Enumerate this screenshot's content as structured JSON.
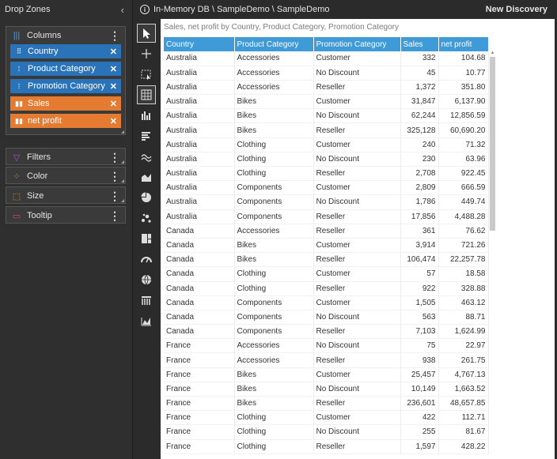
{
  "dropzones": {
    "title": "Drop Zones",
    "collapse_glyph": "‹",
    "columns": {
      "label": "Columns",
      "chips": [
        {
          "label": "Country",
          "kind": "dim"
        },
        {
          "label": "Product Category",
          "kind": "dim"
        },
        {
          "label": "Promotion Category",
          "kind": "dim"
        },
        {
          "label": "Sales",
          "kind": "meas"
        },
        {
          "label": "net profit",
          "kind": "meas"
        }
      ]
    },
    "filters": {
      "label": "Filters"
    },
    "color": {
      "label": "Color"
    },
    "size": {
      "label": "Size"
    },
    "tooltip": {
      "label": "Tooltip"
    },
    "kebab": "⋮",
    "remove": "✕"
  },
  "topbar": {
    "info": "i",
    "path": "In-Memory DB \\ SampleDemo \\ SampleDemo",
    "new_discovery": "New Discovery"
  },
  "visual": {
    "subtitle": "Sales, net profit by Country, Product Category, Promotion Category",
    "headers": [
      "Country",
      "Product Category",
      "Promotion Category",
      "Sales",
      "net profit"
    ],
    "rows": [
      [
        "Australia",
        "Accessories",
        "Customer",
        "332",
        "104.68"
      ],
      [
        "Australia",
        "Accessories",
        "No Discount",
        "45",
        "10.77"
      ],
      [
        "Australia",
        "Accessories",
        "Reseller",
        "1,372",
        "351.80"
      ],
      [
        "Australia",
        "Bikes",
        "Customer",
        "31,847",
        "6,137.90"
      ],
      [
        "Australia",
        "Bikes",
        "No Discount",
        "62,244",
        "12,856.59"
      ],
      [
        "Australia",
        "Bikes",
        "Reseller",
        "325,128",
        "60,690.20"
      ],
      [
        "Australia",
        "Clothing",
        "Customer",
        "240",
        "71.32"
      ],
      [
        "Australia",
        "Clothing",
        "No Discount",
        "230",
        "63.96"
      ],
      [
        "Australia",
        "Clothing",
        "Reseller",
        "2,708",
        "922.45"
      ],
      [
        "Australia",
        "Components",
        "Customer",
        "2,809",
        "666.59"
      ],
      [
        "Australia",
        "Components",
        "No Discount",
        "1,786",
        "449.74"
      ],
      [
        "Australia",
        "Components",
        "Reseller",
        "17,856",
        "4,488.28"
      ],
      [
        "Canada",
        "Accessories",
        "Reseller",
        "361",
        "76.62"
      ],
      [
        "Canada",
        "Bikes",
        "Customer",
        "3,914",
        "721.26"
      ],
      [
        "Canada",
        "Bikes",
        "Reseller",
        "106,474",
        "22,257.78"
      ],
      [
        "Canada",
        "Clothing",
        "Customer",
        "57",
        "18.58"
      ],
      [
        "Canada",
        "Clothing",
        "Reseller",
        "922",
        "328.88"
      ],
      [
        "Canada",
        "Components",
        "Customer",
        "1,505",
        "463.12"
      ],
      [
        "Canada",
        "Components",
        "No Discount",
        "563",
        "88.71"
      ],
      [
        "Canada",
        "Components",
        "Reseller",
        "7,103",
        "1,624.99"
      ],
      [
        "France",
        "Accessories",
        "No Discount",
        "75",
        "22.97"
      ],
      [
        "France",
        "Accessories",
        "Reseller",
        "938",
        "261.75"
      ],
      [
        "France",
        "Bikes",
        "Customer",
        "25,457",
        "4,767.13"
      ],
      [
        "France",
        "Bikes",
        "No Discount",
        "10,149",
        "1,663.52"
      ],
      [
        "France",
        "Bikes",
        "Reseller",
        "236,601",
        "48,657.85"
      ],
      [
        "France",
        "Clothing",
        "Customer",
        "422",
        "112.71"
      ],
      [
        "France",
        "Clothing",
        "No Discount",
        "255",
        "81.67"
      ],
      [
        "France",
        "Clothing",
        "Reseller",
        "1,597",
        "428.22"
      ]
    ]
  },
  "colors": {
    "dimension_chip": "#2a73b8",
    "measure_chip": "#e57b30",
    "header": "#3f9ad8"
  }
}
